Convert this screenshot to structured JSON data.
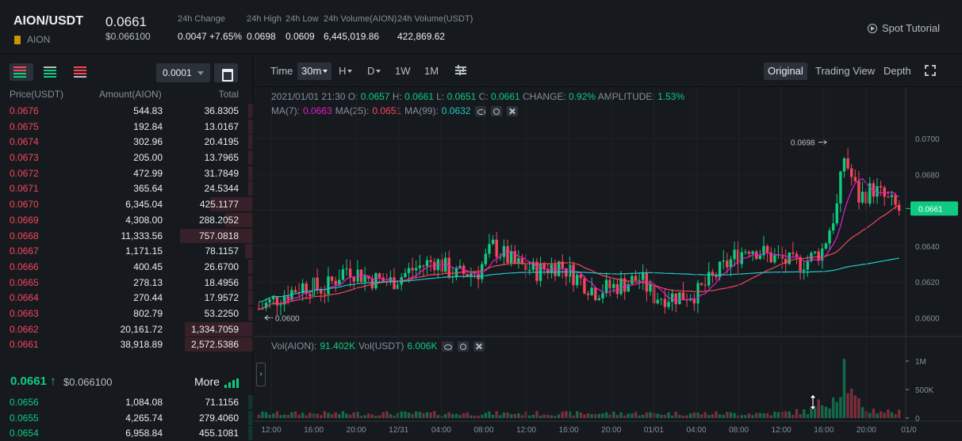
{
  "header": {
    "pair": "AION/USDT",
    "coin": "AION",
    "last_price": "0.0661",
    "last_price_usd": "$0.066100",
    "stats": [
      {
        "label": "24h Change",
        "value": "0.0047 +7.65%",
        "color": "green"
      },
      {
        "label": "24h High",
        "value": "0.0698"
      },
      {
        "label": "24h Low",
        "value": "0.0609"
      },
      {
        "label": "24h Volume(AION)",
        "value": "6,445,019.86"
      },
      {
        "label": "24h Volume(USDT)",
        "value": "422,869.62"
      }
    ],
    "tutorial": "Spot Tutorial"
  },
  "orderbook": {
    "precision": "0.0001",
    "headers": {
      "price": "Price(USDT)",
      "amount": "Amount(AION)",
      "total": "Total"
    },
    "asks": [
      {
        "price": "0.0676",
        "amount": "544.83",
        "total": "36.8305",
        "depth": 0.01
      },
      {
        "price": "0.0675",
        "amount": "192.84",
        "total": "13.0167",
        "depth": 0.005
      },
      {
        "price": "0.0674",
        "amount": "302.96",
        "total": "20.4195",
        "depth": 0.008
      },
      {
        "price": "0.0673",
        "amount": "205.00",
        "total": "13.7965",
        "depth": 0.005
      },
      {
        "price": "0.0672",
        "amount": "472.99",
        "total": "31.7849",
        "depth": 0.012
      },
      {
        "price": "0.0671",
        "amount": "365.64",
        "total": "24.5344",
        "depth": 0.01
      },
      {
        "price": "0.0670",
        "amount": "6,345.04",
        "total": "425.1177",
        "depth": 0.17
      },
      {
        "price": "0.0669",
        "amount": "4,308.00",
        "total": "288.2052",
        "depth": 0.11
      },
      {
        "price": "0.0668",
        "amount": "11,333.56",
        "total": "757.0818",
        "depth": 0.29
      },
      {
        "price": "0.0667",
        "amount": "1,171.15",
        "total": "78.1157",
        "depth": 0.03
      },
      {
        "price": "0.0666",
        "amount": "400.45",
        "total": "26.6700",
        "depth": 0.01
      },
      {
        "price": "0.0665",
        "amount": "278.13",
        "total": "18.4956",
        "depth": 0.007
      },
      {
        "price": "0.0664",
        "amount": "270.44",
        "total": "17.9572",
        "depth": 0.007
      },
      {
        "price": "0.0663",
        "amount": "802.79",
        "total": "53.2250",
        "depth": 0.02
      },
      {
        "price": "0.0662",
        "amount": "20,161.72",
        "total": "1,334.7059",
        "depth": 0.27
      },
      {
        "price": "0.0661",
        "amount": "38,918.89",
        "total": "2,572.5386",
        "depth": 0.27
      }
    ],
    "mid_price": "0.0661",
    "mid_arrow": "↑",
    "mid_usd": "$0.066100",
    "more_label": "More",
    "bids": [
      {
        "price": "0.0656",
        "amount": "1,084.08",
        "total": "71.1156",
        "depth": 0.01
      },
      {
        "price": "0.0655",
        "amount": "4,265.74",
        "total": "279.4060",
        "depth": 0.01
      },
      {
        "price": "0.0654",
        "amount": "6,958.84",
        "total": "455.1081",
        "depth": 0.01
      }
    ]
  },
  "toolbar": {
    "time_label": "Time",
    "intervals": [
      "30m",
      "H",
      "D",
      "1W",
      "1M"
    ],
    "selected_interval": "30m",
    "views": [
      "Original",
      "Trading View",
      "Depth"
    ],
    "selected_view": "Original"
  },
  "ohlc": {
    "datetime": "2021/01/01 21:30",
    "open_label": "O:",
    "open": "0.0657",
    "high_label": "H:",
    "high": "0.0661",
    "low_label": "L:",
    "low": "0.0651",
    "close_label": "C:",
    "close": "0.0661",
    "change_label": "CHANGE:",
    "change": "0.92%",
    "amplitude_label": "AMPLITUDE:",
    "amplitude": "1.53%"
  },
  "ma": {
    "ma7_label": "MA(7):",
    "ma7": "0.0663",
    "ma25_label": "MA(25):",
    "ma25": "0.0651",
    "ma99_label": "MA(99):",
    "ma99": "0.0632"
  },
  "volume_legend": {
    "aion_label": "Vol(AION):",
    "aion": "91.402K",
    "usdt_label": "Vol(USDT)",
    "usdt": "6.006K"
  },
  "colors": {
    "up": "#0ecb81",
    "down": "#f6465d",
    "ma7": "#e21ecd",
    "ma25": "#f6465d",
    "ma99": "#21c7c7"
  },
  "chart_data": {
    "type": "candlestick",
    "price_axis": {
      "ticks": [
        "0.0700",
        "0.0680",
        "0.0660",
        "0.0640",
        "0.0620",
        "0.0600"
      ],
      "range": [
        0.0594,
        0.0712
      ]
    },
    "current_price_tag": "0.0661",
    "high_marker": "0.0698",
    "low_marker": "0.0600",
    "volume_axis": {
      "ticks": [
        "1M",
        "500K",
        "0"
      ]
    },
    "x_ticks": [
      "12:00",
      "16:00",
      "20:00",
      "12/31",
      "04:00",
      "08:00",
      "12:00",
      "16:00",
      "20:00",
      "01/01",
      "04:00",
      "08:00",
      "12:00",
      "16:00",
      "20:00",
      "01/0"
    ],
    "keypoints": [
      [
        0,
        0.0605
      ],
      [
        6,
        0.0612
      ],
      [
        12,
        0.0618
      ],
      [
        18,
        0.0616
      ],
      [
        24,
        0.0628
      ],
      [
        30,
        0.0622
      ],
      [
        36,
        0.062
      ],
      [
        42,
        0.0627
      ],
      [
        48,
        0.0632
      ],
      [
        54,
        0.0624
      ],
      [
        60,
        0.0626
      ],
      [
        64,
        0.064
      ],
      [
        70,
        0.063
      ],
      [
        76,
        0.0626
      ],
      [
        82,
        0.063
      ],
      [
        88,
        0.0621
      ],
      [
        92,
        0.0615
      ],
      [
        98,
        0.0618
      ],
      [
        104,
        0.0622
      ],
      [
        108,
        0.0612
      ],
      [
        114,
        0.0612
      ],
      [
        120,
        0.0614
      ],
      [
        126,
        0.0626
      ],
      [
        130,
        0.0634
      ],
      [
        134,
        0.064
      ],
      [
        140,
        0.0634
      ],
      [
        146,
        0.063
      ],
      [
        150,
        0.0632
      ],
      [
        154,
        0.0638
      ],
      [
        158,
        0.0662
      ],
      [
        160,
        0.069
      ],
      [
        164,
        0.0667
      ],
      [
        168,
        0.0672
      ],
      [
        172,
        0.0665
      ],
      [
        175,
        0.066
      ]
    ],
    "volume_profile": [
      [
        0,
        0.08
      ],
      [
        40,
        0.08
      ],
      [
        100,
        0.08
      ],
      [
        140,
        0.08
      ],
      [
        150,
        0.12
      ],
      [
        155,
        0.3
      ],
      [
        158,
        0.45
      ],
      [
        160,
        0.9
      ],
      [
        162,
        0.4
      ],
      [
        165,
        0.15
      ],
      [
        175,
        0.1
      ]
    ]
  }
}
